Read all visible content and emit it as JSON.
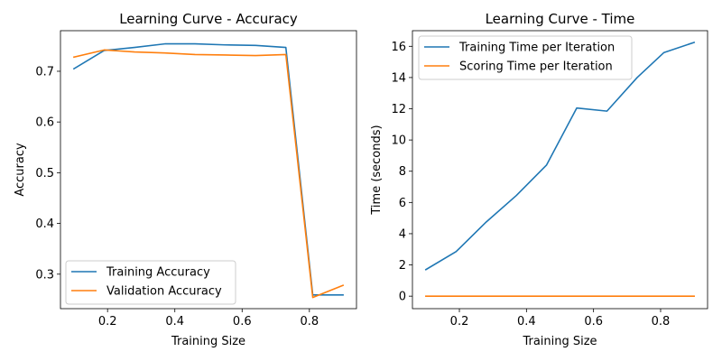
{
  "chart_data": [
    {
      "type": "line",
      "title": "Learning Curve - Accuracy",
      "xlabel": "Training Size",
      "ylabel": "Accuracy",
      "xlim": [
        0.06,
        0.94
      ],
      "ylim": [
        0.232,
        0.78
      ],
      "xticks": [
        0.2,
        0.4,
        0.6,
        0.8
      ],
      "yticks": [
        0.3,
        0.4,
        0.5,
        0.6,
        0.7
      ],
      "grid": false,
      "legend_position": "lower-left",
      "x": [
        0.1,
        0.19,
        0.28,
        0.37,
        0.46,
        0.55,
        0.64,
        0.73,
        0.81,
        0.9
      ],
      "series": [
        {
          "name": "Training Accuracy",
          "color": "#1f77b4",
          "values": [
            0.705,
            0.741,
            0.747,
            0.754,
            0.754,
            0.752,
            0.751,
            0.747,
            0.259,
            0.259
          ]
        },
        {
          "name": "Validation Accuracy",
          "color": "#ff7f0e",
          "values": [
            0.728,
            0.742,
            0.738,
            0.736,
            0.733,
            0.732,
            0.731,
            0.733,
            0.254,
            0.278
          ]
        }
      ]
    },
    {
      "type": "line",
      "title": "Learning Curve - Time",
      "xlabel": "Training Size",
      "ylabel": "Time (seconds)",
      "xlim": [
        0.06,
        0.94
      ],
      "ylim": [
        -0.8,
        17.0
      ],
      "xticks": [
        0.2,
        0.4,
        0.6,
        0.8
      ],
      "yticks": [
        0,
        2,
        4,
        6,
        8,
        10,
        12,
        14,
        16
      ],
      "grid": false,
      "legend_position": "upper-left",
      "x": [
        0.1,
        0.19,
        0.28,
        0.37,
        0.46,
        0.55,
        0.64,
        0.73,
        0.81,
        0.9
      ],
      "series": [
        {
          "name": "Training Time per Iteration",
          "color": "#1f77b4",
          "values": [
            1.7,
            2.85,
            4.75,
            6.45,
            8.4,
            12.05,
            11.85,
            14.0,
            15.6,
            16.25
          ]
        },
        {
          "name": "Scoring Time per Iteration",
          "color": "#ff7f0e",
          "values": [
            0.0,
            0.0,
            0.0,
            0.0,
            0.0,
            0.0,
            0.0,
            0.0,
            0.0,
            0.0
          ]
        }
      ]
    }
  ]
}
